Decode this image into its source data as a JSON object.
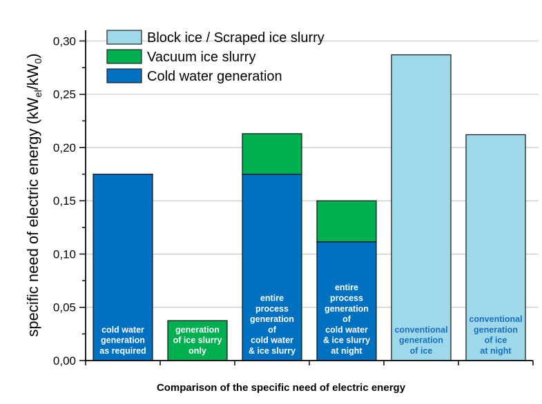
{
  "chart_data": {
    "type": "bar",
    "stacked": true,
    "title": "",
    "xlabel": "Comparison of the specific need of electric energy",
    "ylabel": {
      "main": "specific need of electric energy (kW",
      "sub1": "el",
      "mid": "/kW",
      "sub2": "0",
      "end": ")"
    },
    "ylim": [
      0,
      0.31
    ],
    "yticks": [
      "0,00",
      "0,05",
      "0,10",
      "0,15",
      "0,20",
      "0,25",
      "0,30"
    ],
    "ytick_values": [
      0,
      0.05,
      0.1,
      0.15,
      0.2,
      0.25,
      0.3
    ],
    "grid": true,
    "legend_position": "top-left",
    "categories": [
      [
        "cold water",
        "generation",
        "as required"
      ],
      [
        "generation",
        "of ice slurry",
        "only"
      ],
      [
        "entire",
        "process",
        "generation",
        "of",
        "cold water",
        "& ice slurry"
      ],
      [
        "entire",
        "process",
        "generation",
        "of",
        "cold water",
        "& ice slurry",
        "at night"
      ],
      [
        "conventional",
        "generation",
        "of ice"
      ],
      [
        "conventional",
        "generation",
        "of ice",
        "at night"
      ]
    ],
    "series": [
      {
        "name": "Cold water generation",
        "color": "#0070c0",
        "label_color": "#ffffff",
        "values": [
          0.175,
          0,
          0.175,
          0.1115,
          0,
          0
        ]
      },
      {
        "name": "Vacuum ice slurry",
        "color": "#00b050",
        "label_color": "#ffffff",
        "values": [
          0,
          0.0375,
          0.038,
          0.0385,
          0,
          0
        ]
      },
      {
        "name": "Block ice / Scraped ice slurry",
        "color": "#9dd9ea",
        "label_color": "#1a6fc0",
        "values": [
          0,
          0,
          0,
          0,
          0.287,
          0.212
        ]
      }
    ],
    "legend_order": [
      2,
      1,
      0
    ]
  }
}
